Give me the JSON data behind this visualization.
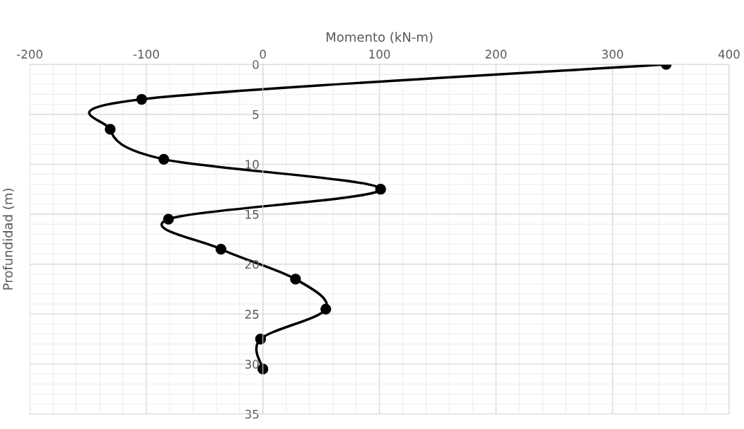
{
  "chart_data": {
    "type": "line",
    "xlabel": "Momento (kN-m)",
    "ylabel": "Profundidad (m)",
    "x": [
      346,
      -104,
      -131,
      -85,
      101,
      -81,
      -36,
      28,
      54,
      -2,
      0
    ],
    "series": [
      {
        "color": "#000000",
        "values": [
          0,
          3.5,
          6.5,
          9.5,
          12.5,
          15.5,
          18.5,
          21.5,
          24.5,
          27.5,
          30.5
        ]
      }
    ],
    "xlim": [
      -200,
      400
    ],
    "xticks": [
      -200,
      -100,
      0,
      100,
      200,
      300,
      400
    ],
    "ylim": [
      35,
      0
    ],
    "yticks": [
      0,
      5,
      10,
      15,
      20,
      25,
      30,
      35
    ],
    "grid": true,
    "marker": "circle",
    "line_style": "solid"
  }
}
